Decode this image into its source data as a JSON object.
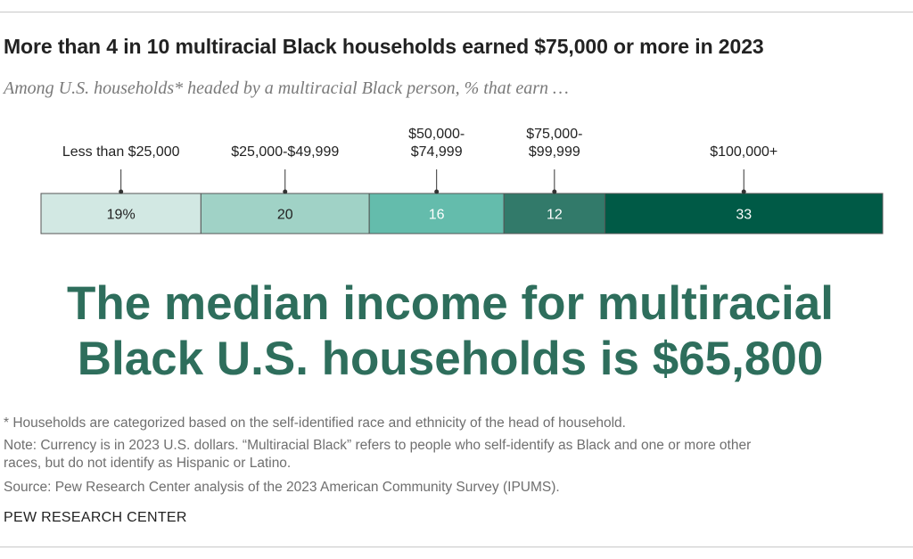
{
  "chart_data": {
    "type": "bar",
    "orientation": "horizontal-stacked",
    "title": "More than 4 in 10 multiracial Black households earned $75,000 or more in 2023",
    "subtitle": "Among U.S. households* headed by a multiracial Black person, % that earn …",
    "categories": [
      [
        "Less than $25,000"
      ],
      [
        "$25,000-$49,999"
      ],
      [
        "$50,000-",
        "$74,999"
      ],
      [
        "$75,000-",
        "$99,999"
      ],
      [
        "$100,000+"
      ]
    ],
    "values": [
      19,
      20,
      16,
      12,
      33
    ],
    "value_labels": [
      "19%",
      "20",
      "16",
      "12",
      "33"
    ],
    "colors": [
      "#d2e8e3",
      "#a0d2c6",
      "#64bcac",
      "#327a6a",
      "#005a46"
    ],
    "label_colors": [
      "#222222",
      "#222222",
      "#ffffff",
      "#ffffff",
      "#ffffff"
    ]
  },
  "headline": {
    "line1": "The median income for multiracial",
    "line2": "Black U.S. households is $65,800"
  },
  "notes": {
    "footnote": "* Households are categorized based on the self-identified race and ethnicity of the head of household.",
    "note_line1": "Note: Currency is in 2023 U.S. dollars. “Multiracial Black” refers to people who self-identify as Black and one or more other",
    "note_line2": "races, but do not identify as Hispanic or Latino.",
    "source": "Source: Pew Research Center analysis of the 2023 American Community Survey (IPUMS)."
  },
  "brand": "PEW RESEARCH CENTER"
}
